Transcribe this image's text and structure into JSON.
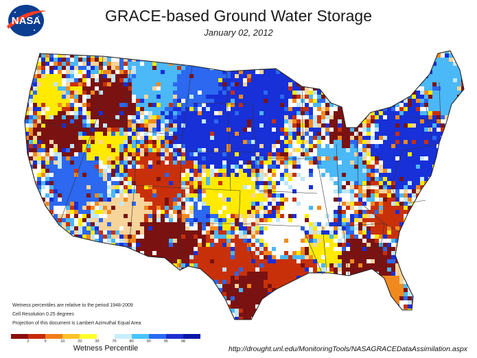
{
  "header": {
    "logo_text": "NASA",
    "title": "GRACE-based Ground Water Storage",
    "date": "January 02, 2012"
  },
  "notes": [
    "Wetness percentiles are relative to the period 1948-2009",
    "Cell Resolution 0.25 degrees",
    "Projection of this document is Lambert Azimuthal Equal Area"
  ],
  "legend": {
    "title": "Wetness Percentile",
    "ticks": [
      "2",
      "5",
      "10",
      "20",
      "30",
      "70",
      "80",
      "90",
      "95",
      "98"
    ],
    "colors": [
      "#8b0d0d",
      "#c62a06",
      "#f07c1a",
      "#fbc32a",
      "#ffff2e",
      "#ffffff",
      "#c8eefc",
      "#48c4ff",
      "#2a6bf2",
      "#1f2ed0",
      "#0a16a8"
    ]
  },
  "map_palette": {
    "dark_red": "#7a1212",
    "red": "#c8300a",
    "orange": "#f18a1e",
    "tan": "#f7d49a",
    "yellow": "#ffea00",
    "white": "#ffffff",
    "light_blue": "#bfe7fb",
    "sky_blue": "#4bb8f7",
    "blue": "#2c68f0",
    "dark_blue": "#1730d8"
  },
  "source": {
    "url": "http://drought.unl.edu/MonitoringTools/NASAGRACEDataAssimilation.aspx"
  }
}
